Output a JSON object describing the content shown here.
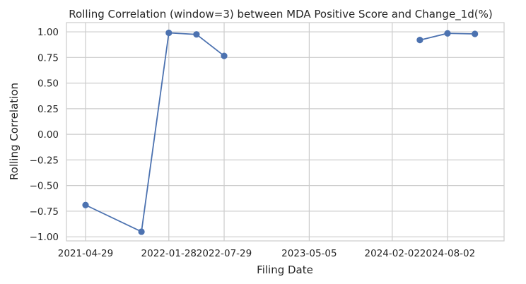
{
  "chart_data": {
    "type": "line",
    "title": "Rolling Correlation (window=3) between MDA Positive Score and Change_1d(%)",
    "xlabel": "Filing Date",
    "ylabel": "Rolling Correlation",
    "ylim": [
      -1.04,
      1.09
    ],
    "grid": true,
    "x_ticks": [
      "2021-04-29",
      "2022-01-28",
      "2022-07-29",
      "2023-05-05",
      "2024-02-02",
      "2024-08-02"
    ],
    "y_ticks": [
      "−1.00",
      "−0.75",
      "−0.50",
      "−0.25",
      "0.00",
      "0.25",
      "0.50",
      "0.75",
      "1.00"
    ],
    "series": [
      {
        "color": "#4c72b0",
        "points": [
          {
            "x": "2021-04-29",
            "y": -0.69
          },
          {
            "x": "2021-10-30",
            "y": -0.95
          },
          {
            "x": "2022-01-28",
            "y": 0.99
          },
          {
            "x": "2022-04-29",
            "y": 0.975
          },
          {
            "x": "2022-07-29",
            "y": 0.765
          },
          {
            "x": "2024-05-03",
            "y": 0.92
          },
          {
            "x": "2024-08-02",
            "y": 0.985
          },
          {
            "x": "2024-10-31",
            "y": 0.98
          }
        ],
        "segments": [
          [
            0,
            4
          ],
          [
            5,
            7
          ]
        ]
      }
    ]
  }
}
